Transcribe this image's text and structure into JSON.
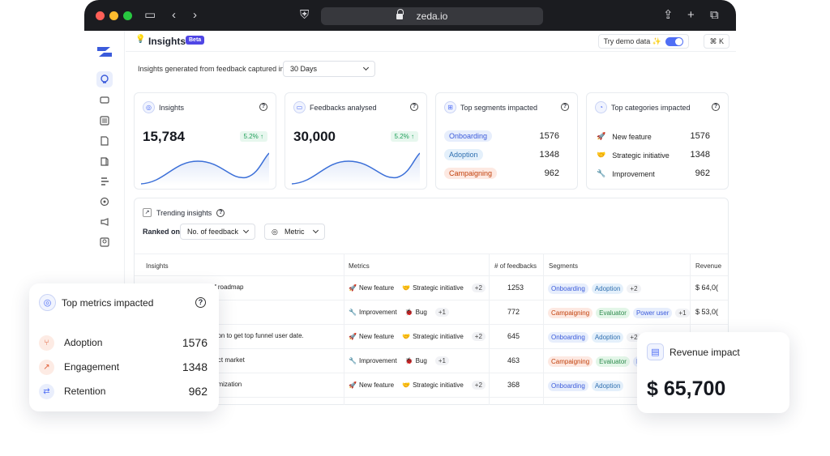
{
  "browser": {
    "url": "zeda.io"
  },
  "header": {
    "title": "Insights",
    "badge": "Beta",
    "demo_label": "Try demo data ✨",
    "shortcut": "⌘ K"
  },
  "filter": {
    "label": "Insights generated from feedback captured in",
    "value": "30 Days"
  },
  "cards": {
    "insights": {
      "label": "Insights",
      "value": "15,784",
      "delta": "5.2% ↑"
    },
    "feedbacks": {
      "label": "Feedbacks analysed",
      "value": "30,000",
      "delta": "5.2% ↑"
    },
    "segments": {
      "label": "Top segments impacted",
      "items": [
        {
          "name": "Onboarding",
          "value": "1576",
          "color": "#e7eefc",
          "text": "#3b5bdb"
        },
        {
          "name": "Adoption",
          "value": "1348",
          "color": "#e4f0fb",
          "text": "#2f6fb0"
        },
        {
          "name": "Campaigning",
          "value": "962",
          "color": "#fde9e2",
          "text": "#c2410c"
        }
      ]
    },
    "categories": {
      "label": "Top categories impacted",
      "items": [
        {
          "name": "New feature",
          "value": "1576",
          "icon": "🚀"
        },
        {
          "name": "Strategic initiative",
          "value": "1348",
          "icon": "🤝"
        },
        {
          "name": "Improvement",
          "value": "962",
          "icon": "🔧"
        }
      ]
    }
  },
  "trending": {
    "title": "Trending insights",
    "ranked_label": "Ranked on",
    "ranked_value": "No. of feedback",
    "metric_label": "Metric",
    "columns": [
      "Insights",
      "Metrics",
      "# of feedbacks",
      "Segments",
      "Revenue"
    ],
    "rows": [
      {
        "insight": "of roadmap",
        "metrics": [
          {
            "icon": "🚀",
            "label": "New feature"
          },
          {
            "icon": "🤝",
            "label": "Strategic initiative"
          }
        ],
        "more": "+2",
        "count": "1253",
        "segments": [
          "Onboarding",
          "Adoption"
        ],
        "seg_more": "+2",
        "revenue": "$ 64,0("
      },
      {
        "insight": "n",
        "metrics": [
          {
            "icon": "🔧",
            "label": "Improvement"
          },
          {
            "icon": "🐞",
            "label": "Bug"
          }
        ],
        "more": "+1",
        "count": "772",
        "segments": [
          "Campaigning",
          "Evaluator",
          "Power user"
        ],
        "seg_more": "+1",
        "revenue": "$ 53,0("
      },
      {
        "insight": "ation to get top funnel user date.",
        "metrics": [
          {
            "icon": "🚀",
            "label": "New feature"
          },
          {
            "icon": "🤝",
            "label": "Strategic initiative"
          }
        ],
        "more": "+2",
        "count": "645",
        "segments": [
          "Onboarding",
          "Adoption"
        ],
        "seg_more": "+2",
        "revenue": ""
      },
      {
        "insight": "duct market",
        "metrics": [
          {
            "icon": "🔧",
            "label": "Improvement"
          },
          {
            "icon": "🐞",
            "label": "Bug"
          }
        ],
        "more": "+1",
        "count": "463",
        "segments": [
          "Campaigning",
          "Evaluator",
          "P"
        ],
        "seg_more": "",
        "revenue": ""
      },
      {
        "insight": "ptimization",
        "metrics": [
          {
            "icon": "🚀",
            "label": "New feature"
          },
          {
            "icon": "🤝",
            "label": "Strategic initiative"
          }
        ],
        "more": "+2",
        "count": "368",
        "segments": [
          "Onboarding",
          "Adoption"
        ],
        "seg_more": "",
        "revenue": ""
      }
    ]
  },
  "top_metrics": {
    "title": "Top metrics impacted",
    "items": [
      {
        "name": "Adoption",
        "value": "1576",
        "icon": "⑂",
        "bg": "#fdebe4",
        "fg": "#e0603a"
      },
      {
        "name": "Engagement",
        "value": "1348",
        "icon": "↗",
        "bg": "#fdebe4",
        "fg": "#e0603a"
      },
      {
        "name": "Retention",
        "value": "962",
        "icon": "⇄",
        "bg": "#e9eefc",
        "fg": "#4f6ef5"
      }
    ]
  },
  "revenue": {
    "title": "Revenue impact",
    "value": "$ 65,700"
  },
  "segment_colors": {
    "Onboarding": [
      "#e7eefc",
      "#3b5bdb"
    ],
    "Adoption": [
      "#e4f0fb",
      "#2f6fb0"
    ],
    "Campaigning": [
      "#fde9e2",
      "#c2410c"
    ],
    "Evaluator": [
      "#e3f6e8",
      "#2e8b4e"
    ],
    "Power user": [
      "#e7eefc",
      "#3b5bdb"
    ],
    "P": [
      "#e7eefc",
      "#3b5bdb"
    ]
  }
}
